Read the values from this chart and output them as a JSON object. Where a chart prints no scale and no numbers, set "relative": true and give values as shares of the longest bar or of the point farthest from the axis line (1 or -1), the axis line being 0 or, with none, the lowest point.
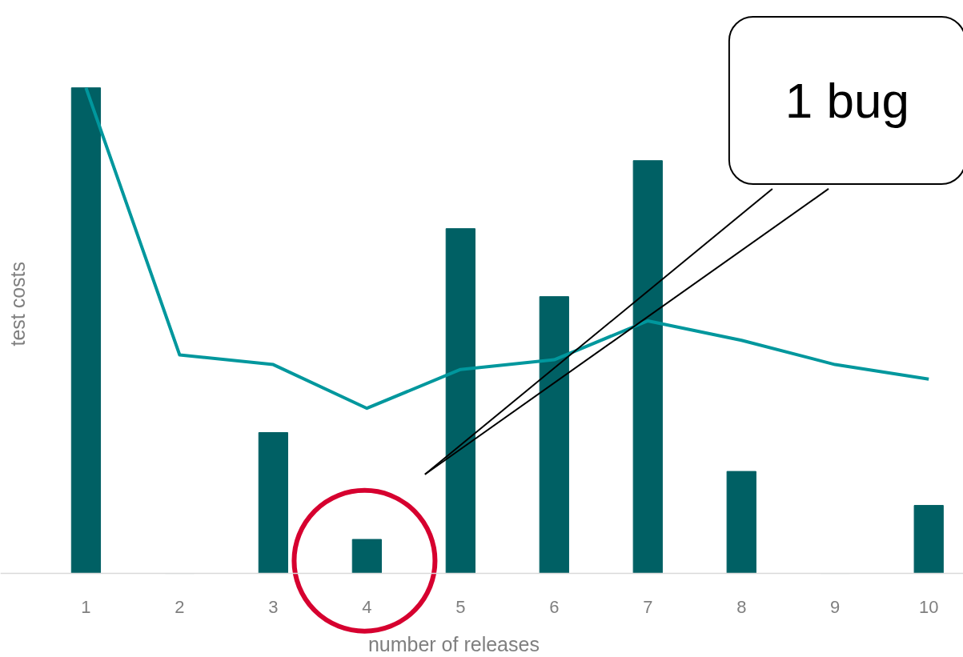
{
  "chart_data": {
    "type": "bar",
    "relative": true,
    "xlabel": "number of releases",
    "ylabel": "test costs",
    "categories": [
      "1",
      "2",
      "3",
      "4",
      "5",
      "6",
      "7",
      "8",
      "9",
      "10"
    ],
    "series": [
      {
        "color": "#006064",
        "values": [
          1.0,
          0,
          0.29,
          0.07,
          0.71,
          0.57,
          0.85,
          0.21,
          0,
          0.14
        ]
      },
      {
        "type": "line",
        "color": "#00979d",
        "values": [
          1.0,
          0.45,
          0.43,
          0.34,
          0.42,
          0.44,
          0.52,
          0.48,
          0.43,
          0.4
        ]
      }
    ],
    "annotations": [
      "1 bug"
    ],
    "grid": false
  }
}
